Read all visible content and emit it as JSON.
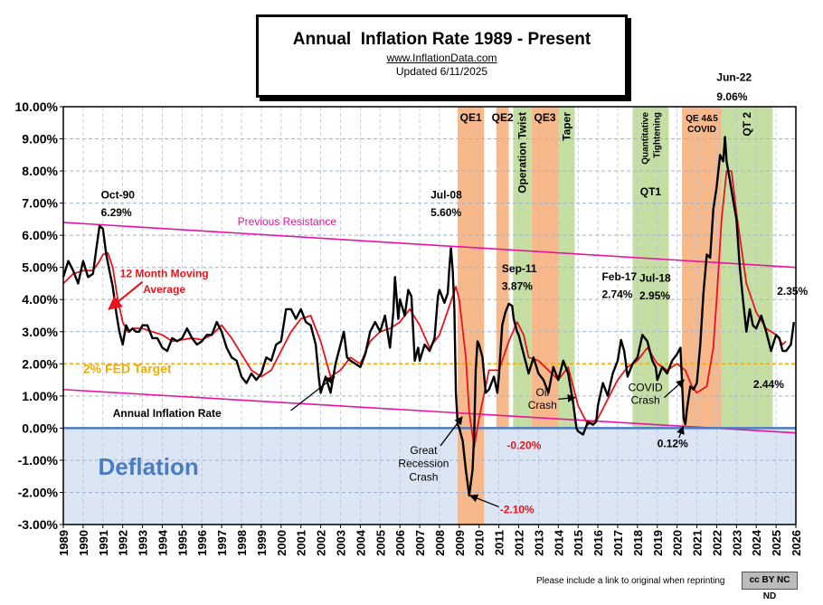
{
  "header": {
    "title": "Annual  Inflation Rate 1989 - Present",
    "website": "www.InflationData.com",
    "updated": "Updated  6/11/2025"
  },
  "footer": {
    "note": "Please include a link to original when reprinting",
    "license": "cc BY NC ND"
  },
  "colors": {
    "main_line": "#000000",
    "moving_average": "#e8141b",
    "resistance": "#e8139f",
    "fed_target": "#f0ac00",
    "deflation_fill": "#dbe5f3",
    "qe_band": "#f7b98b",
    "qt_band": "#c5dea4",
    "deflation_text": "#4a7cc3"
  },
  "chart_data": {
    "type": "line",
    "xlim": [
      1989,
      2026
    ],
    "ylim": [
      -3,
      10
    ],
    "ytick_labels": [
      "10.00%",
      "9.00%",
      "8.00%",
      "7.00%",
      "6.00%",
      "5.00%",
      "4.00%",
      "3.00%",
      "2.00%",
      "1.00%",
      "0.00%",
      "-1.00%",
      "-2.00%",
      "-3.00%"
    ],
    "xtick_labels": [
      "1989",
      "1990",
      "1991",
      "1992",
      "1993",
      "1994",
      "1995",
      "1996",
      "1997",
      "1998",
      "1999",
      "2000",
      "2001",
      "2002",
      "2003",
      "2004",
      "2005",
      "2006",
      "2007",
      "2008",
      "2009",
      "2010",
      "2011",
      "2012",
      "2013",
      "2014",
      "2015",
      "2016",
      "2017",
      "2018",
      "2019",
      "2020",
      "2021",
      "2022",
      "2023",
      "2024",
      "2025",
      "2026"
    ],
    "grid": true,
    "bands": [
      {
        "label": "QE1",
        "x0": 2008.92,
        "x1": 2010.25,
        "kind": "qe",
        "vertical": false
      },
      {
        "label": "QE2",
        "x0": 2010.87,
        "x1": 2011.5,
        "kind": "qe",
        "vertical": false
      },
      {
        "label": "Operation Twist",
        "x0": 2011.72,
        "x1": 2012.65,
        "kind": "qt",
        "vertical": true
      },
      {
        "label": "QE3",
        "x0": 2012.65,
        "x1": 2014.0,
        "kind": "qe",
        "vertical": false
      },
      {
        "label": "Taper",
        "x0": 2014.0,
        "x1": 2014.83,
        "kind": "qt",
        "vertical": true
      },
      {
        "label": "Quantitative Tightening",
        "x0": 2017.75,
        "x1": 2019.58,
        "kind": "qt",
        "vertical": true
      },
      {
        "label": "QT1",
        "x0": 2017.75,
        "x1": 2019.58,
        "kind": "qt",
        "vertical": false
      },
      {
        "label": "QE 4&5",
        "x0": 2020.25,
        "x1": 2022.25,
        "kind": "qe",
        "vertical": false
      },
      {
        "label": "COVID",
        "x0": 2020.25,
        "x1": 2022.25,
        "kind": "qe",
        "vertical": false
      },
      {
        "label": "QT 2",
        "x0": 2022.25,
        "x1": 2024.83,
        "kind": "qt",
        "vertical": true
      }
    ],
    "deflation_label": "Deflation",
    "fed_target": {
      "value": 2.0,
      "label": "2% FED Target"
    },
    "resistance_line": {
      "label": "Previous Resistance",
      "x": [
        1989,
        2026
      ],
      "y": [
        6.4,
        5.0
      ]
    },
    "support_line": {
      "x": [
        1989,
        2026
      ],
      "y": [
        1.2,
        -0.15
      ]
    },
    "series": [
      {
        "name": "Annual Inflation Rate",
        "x": [
          1989.0,
          1989.25,
          1989.5,
          1989.75,
          1990.0,
          1990.25,
          1990.5,
          1990.67,
          1990.83,
          1991.0,
          1991.17,
          1991.33,
          1991.5,
          1991.67,
          1991.83,
          1992.0,
          1992.17,
          1992.33,
          1992.5,
          1992.67,
          1992.83,
          1993.0,
          1993.25,
          1993.5,
          1993.75,
          1994.0,
          1994.25,
          1994.5,
          1994.75,
          1995.0,
          1995.25,
          1995.5,
          1995.75,
          1996.0,
          1996.25,
          1996.5,
          1996.75,
          1997.0,
          1997.25,
          1997.5,
          1997.75,
          1998.0,
          1998.25,
          1998.5,
          1998.75,
          1999.0,
          1999.25,
          1999.5,
          1999.75,
          2000.0,
          2000.25,
          2000.5,
          2000.75,
          2001.0,
          2001.25,
          2001.5,
          2001.75,
          2001.92,
          2002.0,
          2002.25,
          2002.5,
          2002.75,
          2003.0,
          2003.17,
          2003.33,
          2003.5,
          2003.75,
          2004.0,
          2004.25,
          2004.5,
          2004.75,
          2005.0,
          2005.25,
          2005.5,
          2005.67,
          2005.75,
          2005.92,
          2006.0,
          2006.25,
          2006.42,
          2006.58,
          2006.75,
          2006.92,
          2007.0,
          2007.25,
          2007.5,
          2007.75,
          2007.92,
          2008.0,
          2008.25,
          2008.42,
          2008.5,
          2008.58,
          2008.67,
          2008.75,
          2008.83,
          2008.92,
          2009.0,
          2009.17,
          2009.33,
          2009.5,
          2009.67,
          2009.75,
          2009.83,
          2009.92,
          2010.0,
          2010.17,
          2010.33,
          2010.5,
          2010.75,
          2010.92,
          2011.0,
          2011.17,
          2011.33,
          2011.5,
          2011.67,
          2011.75,
          2011.92,
          2012.0,
          2012.25,
          2012.5,
          2012.75,
          2013.0,
          2013.25,
          2013.5,
          2013.75,
          2014.0,
          2014.25,
          2014.5,
          2014.75,
          2014.92,
          2015.0,
          2015.25,
          2015.5,
          2015.75,
          2015.92,
          2016.0,
          2016.25,
          2016.5,
          2016.75,
          2017.0,
          2017.17,
          2017.33,
          2017.5,
          2017.75,
          2018.0,
          2018.25,
          2018.5,
          2018.75,
          2018.92,
          2019.0,
          2019.25,
          2019.5,
          2019.75,
          2020.0,
          2020.17,
          2020.33,
          2020.42,
          2020.5,
          2020.67,
          2020.83,
          2021.0,
          2021.17,
          2021.33,
          2021.5,
          2021.67,
          2021.83,
          2022.0,
          2022.17,
          2022.33,
          2022.42,
          2022.5,
          2022.67,
          2022.83,
          2023.0,
          2023.17,
          2023.33,
          2023.5,
          2023.67,
          2023.83,
          2024.0,
          2024.25,
          2024.5,
          2024.75,
          2025.0,
          2025.17,
          2025.33,
          2025.5,
          2025.75,
          2025.9
        ],
        "y": [
          4.7,
          5.2,
          4.9,
          4.5,
          5.2,
          4.7,
          4.8,
          5.6,
          6.29,
          6.2,
          5.4,
          4.9,
          4.4,
          3.6,
          3.0,
          2.6,
          3.2,
          3.0,
          3.1,
          3.0,
          3.0,
          3.2,
          3.2,
          2.8,
          2.8,
          2.5,
          2.4,
          2.8,
          2.7,
          2.8,
          3.1,
          2.8,
          2.6,
          2.7,
          2.9,
          2.9,
          3.3,
          3.0,
          2.5,
          2.2,
          2.1,
          1.6,
          1.4,
          1.7,
          1.5,
          1.7,
          2.2,
          2.1,
          2.6,
          2.7,
          3.7,
          3.7,
          3.4,
          3.7,
          3.3,
          3.2,
          2.6,
          1.5,
          1.1,
          1.6,
          1.1,
          2.0,
          2.6,
          3.0,
          2.2,
          2.1,
          2.0,
          1.9,
          2.3,
          3.0,
          3.3,
          3.0,
          3.5,
          2.5,
          3.6,
          4.7,
          3.4,
          4.0,
          3.5,
          4.3,
          4.1,
          2.1,
          2.5,
          2.1,
          2.6,
          2.4,
          2.8,
          4.1,
          4.3,
          3.9,
          4.2,
          5.0,
          5.6,
          4.9,
          3.7,
          1.1,
          0.1,
          0.0,
          -0.4,
          -1.3,
          -2.1,
          -1.3,
          -0.2,
          1.8,
          2.7,
          2.6,
          2.2,
          1.1,
          1.2,
          1.6,
          1.1,
          1.6,
          3.2,
          3.6,
          3.87,
          3.8,
          3.4,
          3.0,
          2.9,
          2.3,
          1.7,
          2.2,
          1.7,
          1.5,
          1.1,
          1.9,
          1.5,
          2.1,
          1.7,
          0.8,
          0.0,
          -0.1,
          -0.2,
          0.2,
          0.1,
          0.2,
          0.7,
          1.4,
          1.0,
          1.7,
          2.1,
          2.74,
          2.4,
          1.6,
          2.0,
          2.2,
          2.9,
          2.7,
          2.1,
          1.9,
          1.5,
          1.9,
          1.7,
          2.1,
          2.3,
          2.5,
          0.3,
          0.12,
          0.6,
          1.3,
          1.2,
          1.4,
          2.6,
          4.2,
          5.4,
          5.3,
          6.8,
          7.5,
          8.5,
          8.3,
          9.06,
          8.3,
          7.7,
          7.1,
          6.5,
          5.0,
          4.0,
          3.0,
          3.7,
          3.2,
          3.1,
          3.5,
          3.0,
          2.4,
          2.9,
          2.8,
          2.4,
          2.4,
          2.6,
          3.3
        ]
      },
      {
        "name": "12 Month Moving Average",
        "x": [
          1989.0,
          1989.5,
          1990.0,
          1990.5,
          1990.83,
          1991.0,
          1991.25,
          1991.5,
          1991.75,
          1992.0,
          1992.25,
          1992.5,
          1993.0,
          1993.5,
          1994.0,
          1994.5,
          1995.0,
          1995.5,
          1996.0,
          1996.5,
          1997.0,
          1997.5,
          1998.0,
          1998.5,
          1999.0,
          1999.5,
          2000.0,
          2000.5,
          2001.0,
          2001.5,
          2002.0,
          2002.5,
          2003.0,
          2003.5,
          2004.0,
          2004.5,
          2005.0,
          2005.5,
          2006.0,
          2006.5,
          2007.0,
          2007.5,
          2008.0,
          2008.5,
          2008.83,
          2009.0,
          2009.33,
          2009.5,
          2009.75,
          2010.0,
          2010.5,
          2011.0,
          2011.5,
          2011.92,
          2012.25,
          2012.5,
          2013.0,
          2013.5,
          2014.0,
          2014.5,
          2015.0,
          2015.5,
          2016.0,
          2016.5,
          2017.0,
          2017.5,
          2018.0,
          2018.5,
          2019.0,
          2019.5,
          2020.0,
          2020.42,
          2020.75,
          2021.0,
          2021.5,
          2021.83,
          2022.0,
          2022.25,
          2022.5,
          2022.75,
          2023.0,
          2023.5,
          2024.0,
          2024.5,
          2025.0,
          2025.33,
          2025.5
        ],
        "y": [
          4.5,
          4.8,
          4.9,
          4.9,
          5.2,
          5.4,
          5.45,
          5.0,
          4.0,
          3.3,
          3.0,
          3.1,
          3.1,
          3.0,
          2.9,
          2.7,
          2.75,
          2.8,
          2.75,
          2.9,
          3.2,
          2.8,
          2.3,
          1.8,
          1.6,
          1.8,
          2.4,
          3.0,
          3.4,
          3.5,
          2.7,
          1.6,
          1.8,
          2.2,
          2.0,
          2.7,
          3.0,
          3.1,
          3.3,
          3.7,
          3.2,
          2.5,
          2.9,
          3.8,
          4.4,
          4.0,
          2.2,
          0.5,
          -0.6,
          0.3,
          1.8,
          1.8,
          2.7,
          3.3,
          2.9,
          2.2,
          2.1,
          1.8,
          1.5,
          1.9,
          0.7,
          0.1,
          0.3,
          0.9,
          1.5,
          1.9,
          2.1,
          2.5,
          2.0,
          1.8,
          2.0,
          1.8,
          1.3,
          1.1,
          1.3,
          2.5,
          4.0,
          6.5,
          8.0,
          8.0,
          6.7,
          4.5,
          3.6,
          3.1,
          2.9,
          2.6,
          2.7
        ]
      }
    ],
    "annotations": [
      {
        "text": "Oct-90",
        "x": 1990.9,
        "y": 7.15,
        "weight": "bold",
        "color": "#000",
        "anchor": "start"
      },
      {
        "text": "6.29%",
        "x": 1990.9,
        "y": 6.6,
        "weight": "bold",
        "color": "#000",
        "anchor": "start"
      },
      {
        "text": "Jul-08",
        "x": 2007.55,
        "y": 7.15,
        "weight": "bold",
        "color": "#000",
        "anchor": "start"
      },
      {
        "text": "5.60%",
        "x": 2007.55,
        "y": 6.6,
        "weight": "bold",
        "color": "#000",
        "anchor": "start"
      },
      {
        "text": "Sep-11",
        "x": 2011.15,
        "y": 4.85,
        "weight": "bold",
        "color": "#000",
        "anchor": "start"
      },
      {
        "text": "3.87%",
        "x": 2011.15,
        "y": 4.3,
        "weight": "bold",
        "color": "#000",
        "anchor": "start"
      },
      {
        "text": "Feb-17",
        "x": 2016.2,
        "y": 4.6,
        "weight": "bold",
        "color": "#000",
        "anchor": "start"
      },
      {
        "text": "2.74%",
        "x": 2016.2,
        "y": 4.05,
        "weight": "bold",
        "color": "#000",
        "anchor": "start"
      },
      {
        "text": "Jul-18",
        "x": 2018.1,
        "y": 4.55,
        "weight": "bold",
        "color": "#000",
        "anchor": "start"
      },
      {
        "text": "2.95%",
        "x": 2018.1,
        "y": 4.0,
        "weight": "bold",
        "color": "#000",
        "anchor": "start"
      },
      {
        "text": "Jun-22",
        "x": 2022.0,
        "y": 10.8,
        "weight": "bold",
        "color": "#000",
        "anchor": "start"
      },
      {
        "text": "9.06%",
        "x": 2022.0,
        "y": 10.2,
        "weight": "bold",
        "color": "#000",
        "anchor": "start"
      },
      {
        "text": "2.35%",
        "x": 2025.05,
        "y": 4.15,
        "weight": "bold",
        "color": "#000",
        "anchor": "start"
      },
      {
        "text": "2.44%",
        "x": 2023.85,
        "y": 1.25,
        "weight": "bold",
        "color": "#000",
        "anchor": "start"
      },
      {
        "text": "-0.20%",
        "x": 2011.4,
        "y": -0.65,
        "weight": "bold",
        "color": "#e8141b",
        "anchor": "start"
      },
      {
        "text": "-2.10%",
        "x": 2011.05,
        "y": -2.65,
        "weight": "bold",
        "color": "#e8141b",
        "anchor": "start"
      },
      {
        "text": "0.12%",
        "x": 2019.0,
        "y": -0.6,
        "weight": "bold",
        "color": "#000",
        "anchor": "start"
      },
      {
        "text": "12 Month Moving",
        "x": 1994.1,
        "y": 4.7,
        "weight": "bold",
        "color": "#e8141b",
        "anchor": "middle"
      },
      {
        "text": "Average",
        "x": 1994.1,
        "y": 4.2,
        "weight": "bold",
        "color": "#e8141b",
        "anchor": "middle"
      },
      {
        "text": "Annual Inflation Rate",
        "x": 1991.5,
        "y": 0.35,
        "weight": "bold",
        "color": "#000",
        "anchor": "start"
      },
      {
        "text": "Great",
        "x": 2007.2,
        "y": -0.8,
        "weight": "normal",
        "color": "#000",
        "anchor": "middle"
      },
      {
        "text": "Recession",
        "x": 2007.2,
        "y": -1.22,
        "weight": "normal",
        "color": "#000",
        "anchor": "middle"
      },
      {
        "text": "Crash",
        "x": 2007.2,
        "y": -1.64,
        "weight": "normal",
        "color": "#000",
        "anchor": "middle"
      },
      {
        "text": "Oil",
        "x": 2013.2,
        "y": 1.0,
        "weight": "normal",
        "color": "#000",
        "anchor": "middle"
      },
      {
        "text": "Crash",
        "x": 2013.2,
        "y": 0.6,
        "weight": "normal",
        "color": "#000",
        "anchor": "middle"
      },
      {
        "text": "COVID",
        "x": 2018.4,
        "y": 1.15,
        "weight": "normal",
        "color": "#000",
        "anchor": "middle"
      },
      {
        "text": "Crash",
        "x": 2018.4,
        "y": 0.75,
        "weight": "normal",
        "color": "#000",
        "anchor": "middle"
      }
    ],
    "arrows": [
      {
        "from": [
          1993.0,
          4.55
        ],
        "to": [
          1991.3,
          3.7
        ],
        "color": "#e8141b"
      },
      {
        "from": [
          2000.5,
          0.55
        ],
        "to": [
          2002.7,
          1.6
        ],
        "color": "#000"
      },
      {
        "from": [
          2011.0,
          -2.45
        ],
        "to": [
          2009.55,
          -2.1
        ],
        "color": "#000"
      },
      {
        "from": [
          2008.05,
          -0.55
        ],
        "to": [
          2009.15,
          0.35
        ],
        "color": "#000"
      },
      {
        "from": [
          2014.0,
          0.9
        ],
        "to": [
          2014.85,
          0.95
        ],
        "color": "#000"
      },
      {
        "from": [
          2019.35,
          0.95
        ],
        "to": [
          2020.35,
          1.5
        ],
        "color": "#000"
      },
      {
        "from": [
          2020.1,
          -0.3
        ],
        "to": [
          2020.3,
          0.05
        ],
        "color": "#000"
      }
    ]
  }
}
